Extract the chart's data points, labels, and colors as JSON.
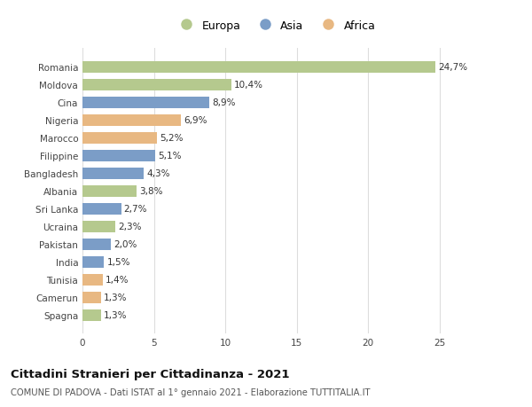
{
  "countries": [
    "Romania",
    "Moldova",
    "Cina",
    "Nigeria",
    "Marocco",
    "Filippine",
    "Bangladesh",
    "Albania",
    "Sri Lanka",
    "Ucraina",
    "Pakistan",
    "India",
    "Tunisia",
    "Camerun",
    "Spagna"
  ],
  "values": [
    24.7,
    10.4,
    8.9,
    6.9,
    5.2,
    5.1,
    4.3,
    3.8,
    2.7,
    2.3,
    2.0,
    1.5,
    1.4,
    1.3,
    1.3
  ],
  "labels": [
    "24,7%",
    "10,4%",
    "8,9%",
    "6,9%",
    "5,2%",
    "5,1%",
    "4,3%",
    "3,8%",
    "2,7%",
    "2,3%",
    "2,0%",
    "1,5%",
    "1,4%",
    "1,3%",
    "1,3%"
  ],
  "continents": [
    "Europa",
    "Europa",
    "Asia",
    "Africa",
    "Africa",
    "Asia",
    "Asia",
    "Europa",
    "Asia",
    "Europa",
    "Asia",
    "Asia",
    "Africa",
    "Africa",
    "Europa"
  ],
  "colors": {
    "Europa": "#b5c98e",
    "Asia": "#7b9dc7",
    "Africa": "#e8b882"
  },
  "legend_order": [
    "Europa",
    "Asia",
    "Africa"
  ],
  "title": "Cittadini Stranieri per Cittadinanza - 2021",
  "subtitle": "COMUNE DI PADOVA - Dati ISTAT al 1° gennaio 2021 - Elaborazione TUTTITALIA.IT",
  "xlim": [
    0,
    27
  ],
  "xticks": [
    0,
    5,
    10,
    15,
    20,
    25
  ],
  "bg_color": "#ffffff",
  "grid_color": "#dddddd",
  "bar_height": 0.65,
  "label_fontsize": 7.5,
  "tick_fontsize": 7.5,
  "title_fontsize": 9.5,
  "subtitle_fontsize": 7.2
}
